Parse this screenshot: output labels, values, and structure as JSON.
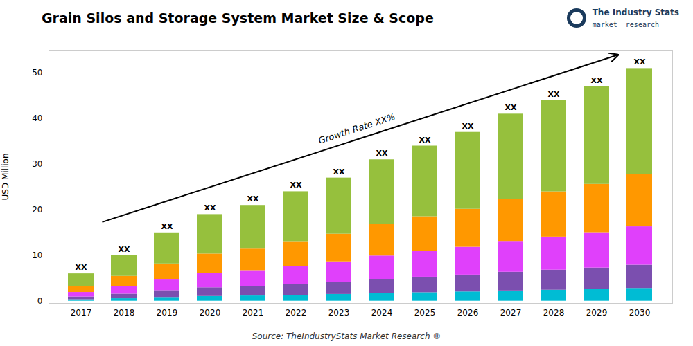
{
  "chart_data": {
    "type": "bar",
    "stacked": true,
    "title": "Grain Silos and Storage System Market Size & Scope",
    "ylabel": "USD Million",
    "source": "Source: TheIndustryStats Market Research ®",
    "categories": [
      "2017",
      "2018",
      "2019",
      "2020",
      "2021",
      "2022",
      "2023",
      "2024",
      "2025",
      "2026",
      "2027",
      "2028",
      "2029",
      "2030"
    ],
    "series": [
      {
        "color": "#00bcd4",
        "values": [
          0.33,
          0.55,
          0.825,
          1.045,
          1.155,
          1.32,
          1.485,
          1.705,
          1.87,
          2.035,
          2.255,
          2.42,
          2.585,
          2.805
        ]
      },
      {
        "color": "#7b4faf",
        "values": [
          0.6,
          1,
          1.5,
          1.9,
          2.1,
          2.4,
          2.7,
          3.1,
          3.4,
          3.7,
          4.1,
          4.4,
          4.7,
          5.1
        ]
      },
      {
        "color": "#e040fb",
        "values": [
          0.99,
          1.65,
          2.475,
          3.135,
          3.465,
          3.96,
          4.455,
          5.115,
          5.61,
          6.105,
          6.765,
          7.26,
          7.755,
          8.415
        ]
      },
      {
        "color": "#ff9800",
        "values": [
          1.35,
          2.25,
          3.375,
          4.275,
          4.725,
          5.4,
          6.075,
          6.975,
          7.65,
          8.325,
          9.225,
          9.9,
          10.575,
          11.475
        ]
      },
      {
        "color": "#96c03d",
        "values": [
          2.73,
          4.55,
          6.825,
          8.645,
          9.555,
          10.92,
          12.285,
          14.105,
          15.47,
          16.835,
          18.655,
          20.02,
          21.385,
          23.205
        ]
      }
    ],
    "bar_labels": [
      "XX",
      "XX",
      "XX",
      "XX",
      "XX",
      "XX",
      "XX",
      "XX",
      "XX",
      "XX",
      "XX",
      "XX",
      "XX",
      "XX"
    ],
    "annotations": [
      "Growth Rate XX%",
      "The Industry Stats",
      "market  research"
    ],
    "ylim": [
      -0.5,
      55
    ],
    "yticks": [
      0,
      10,
      20,
      30,
      40,
      50
    ],
    "grid": false
  }
}
